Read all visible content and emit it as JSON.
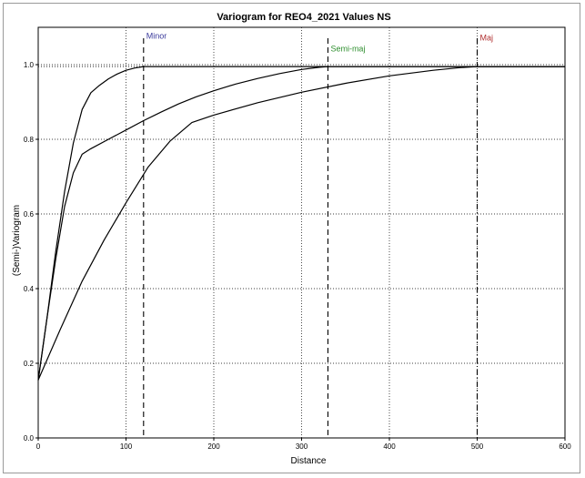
{
  "chart_data": {
    "type": "line",
    "title": "Variogram for REO4_2021 Values NS",
    "xlabel": "Distance",
    "ylabel": "(Semi-)Variogram",
    "xlim": [
      0,
      600
    ],
    "ylim": [
      0,
      1.1
    ],
    "x_ticks": [
      0,
      100,
      200,
      300,
      400,
      500,
      600
    ],
    "y_ticks": [
      0.0,
      0.2,
      0.4,
      0.6,
      0.8,
      1.0
    ],
    "x_tick_labels": [
      "0",
      "100",
      "200",
      "300",
      "400",
      "500",
      "600"
    ],
    "y_tick_labels": [
      "0.0",
      "0.2",
      "0.4",
      "0.6",
      "0.8",
      "1.0"
    ],
    "grid": true,
    "sill": 0.995,
    "series": [
      {
        "x": [
          0,
          10,
          20,
          30,
          40,
          50,
          60,
          70,
          80,
          90,
          100,
          110,
          120,
          140,
          160,
          200,
          300,
          400,
          500,
          600
        ],
        "y": [
          0.155,
          0.32,
          0.5,
          0.66,
          0.79,
          0.88,
          0.925,
          0.945,
          0.962,
          0.975,
          0.985,
          0.991,
          0.995,
          0.995,
          0.995,
          0.995,
          0.995,
          0.995,
          0.995,
          0.995
        ]
      },
      {
        "x": [
          0,
          10,
          20,
          30,
          40,
          50,
          60,
          80,
          100,
          120,
          140,
          160,
          180,
          200,
          225,
          250,
          275,
          300,
          320,
          330,
          340,
          400,
          500,
          600
        ],
        "y": [
          0.155,
          0.32,
          0.48,
          0.62,
          0.71,
          0.76,
          0.775,
          0.8,
          0.825,
          0.85,
          0.873,
          0.895,
          0.914,
          0.93,
          0.948,
          0.963,
          0.976,
          0.987,
          0.993,
          0.995,
          0.995,
          0.995,
          0.995,
          0.995
        ]
      },
      {
        "x": [
          0,
          25,
          50,
          75,
          100,
          125,
          150,
          175,
          200,
          250,
          300,
          350,
          400,
          450,
          480,
          500,
          600
        ],
        "y": [
          0.155,
          0.29,
          0.42,
          0.53,
          0.63,
          0.725,
          0.795,
          0.845,
          0.865,
          0.898,
          0.926,
          0.95,
          0.97,
          0.985,
          0.992,
          0.995,
          0.995
        ]
      }
    ],
    "markers": [
      {
        "label": "Minor",
        "x": 120,
        "color": "#3b3b9c",
        "style": "dashed"
      },
      {
        "label": "Semi-maj",
        "x": 330,
        "color": "#2f8f2f",
        "style": "dashed"
      },
      {
        "label": "Maj",
        "x": 500,
        "color": "#b03030",
        "style": "dashdot"
      }
    ]
  }
}
